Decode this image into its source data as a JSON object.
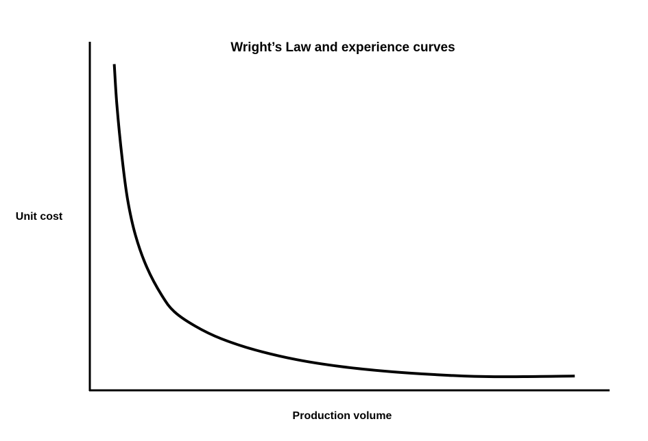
{
  "chart_data": {
    "type": "line",
    "title": "Wright’s Law and experience curves",
    "xlabel": "Production volume",
    "ylabel": "Unit cost",
    "x_ticks": false,
    "y_ticks": false,
    "grid": false,
    "legend": "none",
    "xlim": [
      0,
      1
    ],
    "ylim": [
      0,
      1
    ],
    "line_color": "#000000",
    "axis_color": "#000000",
    "series": [
      {
        "x": [
          0.047,
          0.052,
          0.062,
          0.073,
          0.088,
          0.11,
          0.139,
          0.163,
          0.203,
          0.253,
          0.318,
          0.398,
          0.484,
          0.583,
          0.69,
          0.778,
          0.933
        ],
        "values": [
          0.936,
          0.82,
          0.668,
          0.545,
          0.444,
          0.352,
          0.271,
          0.225,
          0.184,
          0.148,
          0.116,
          0.088,
          0.068,
          0.053,
          0.043,
          0.039,
          0.041
        ]
      }
    ]
  }
}
